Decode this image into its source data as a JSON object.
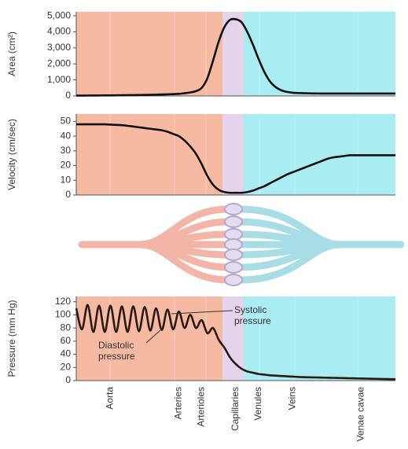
{
  "chart_data": [
    {
      "type": "line",
      "y_label": "Area (cm²)",
      "color": "#111111",
      "ylim": [
        0,
        5250
      ],
      "yticks": [
        0,
        {
          "value": 1000,
          "label": "1,000"
        },
        {
          "value": 2000,
          "label": "2,000"
        },
        {
          "value": 3000,
          "label": "3,000"
        },
        {
          "value": 4000,
          "label": "4,000"
        },
        {
          "value": 5000,
          "label": "5,000"
        }
      ],
      "values": [
        20,
        22,
        25,
        28,
        30,
        33,
        36,
        40,
        45,
        50,
        55,
        60,
        65,
        72,
        80,
        90,
        100,
        115,
        130,
        170,
        220,
        300,
        500,
        1100,
        2200,
        3400,
        4300,
        4750,
        4780,
        4600,
        4000,
        3200,
        2300,
        1500,
        900,
        550,
        350,
        250,
        200,
        180,
        170,
        160,
        155,
        150,
        150,
        150,
        150,
        150,
        150,
        150,
        150,
        150,
        150,
        150,
        150,
        150,
        150
      ]
    },
    {
      "type": "line",
      "y_label": "Velocity (cm/sec)",
      "color": "#111111",
      "ylim": [
        0,
        55
      ],
      "yticks": [
        0,
        10,
        20,
        30,
        40,
        50
      ],
      "values": [
        48,
        48,
        48,
        48,
        48,
        48,
        47.8,
        47.6,
        47.4,
        47,
        46.5,
        46,
        45.5,
        45,
        44.5,
        44,
        43,
        41.5,
        40,
        37,
        33,
        28,
        21,
        13,
        7,
        3.5,
        2,
        1.5,
        1.5,
        1.5,
        2,
        3,
        4.5,
        6,
        8,
        10,
        12,
        14,
        15.5,
        17,
        18.5,
        20,
        21.5,
        23,
        24.5,
        25.5,
        26,
        26.5,
        27,
        27,
        27,
        27,
        27,
        27,
        27,
        27,
        27
      ]
    },
    {
      "type": "line",
      "y_label": "Pressure (mm Hg)",
      "color": "#2a1a14",
      "ylim": [
        0,
        128
      ],
      "yticks": [
        0,
        20,
        40,
        60,
        80,
        100,
        120
      ],
      "values": [
        110,
        78,
        115,
        74,
        114,
        74,
        114,
        74,
        113,
        74,
        113,
        75,
        112,
        76,
        110,
        77,
        108,
        78,
        105,
        80,
        100,
        80,
        92,
        72,
        80,
        62,
        50,
        35,
        25,
        18,
        14,
        12,
        10,
        9,
        8,
        7.5,
        7,
        6.5,
        6,
        5.5,
        5.2,
        5,
        4.8,
        4.6,
        4.4,
        4.2,
        4,
        3.8,
        3.6,
        3.4,
        3.2,
        3,
        2.8,
        2.6,
        2.4,
        2.2,
        2
      ],
      "categories": [
        null,
        null,
        null,
        null,
        null,
        null,
        "Aorta",
        null,
        null,
        null,
        null,
        null,
        null,
        null,
        null,
        null,
        null,
        null,
        "Arteries",
        null,
        null,
        null,
        "Arterioles",
        null,
        null,
        null,
        null,
        null,
        "Capillaries",
        null,
        null,
        null,
        "Venules",
        null,
        null,
        null,
        null,
        null,
        "Veins",
        null,
        null,
        null,
        null,
        null,
        null,
        null,
        null,
        null,
        null,
        null,
        "Venae cavae",
        null,
        null,
        null,
        null,
        null,
        null
      ],
      "annotations": [
        {
          "lines": [
            "Systolic",
            "pressure"
          ]
        },
        {
          "lines": [
            "Diastolic",
            "pressure"
          ]
        }
      ]
    }
  ]
}
